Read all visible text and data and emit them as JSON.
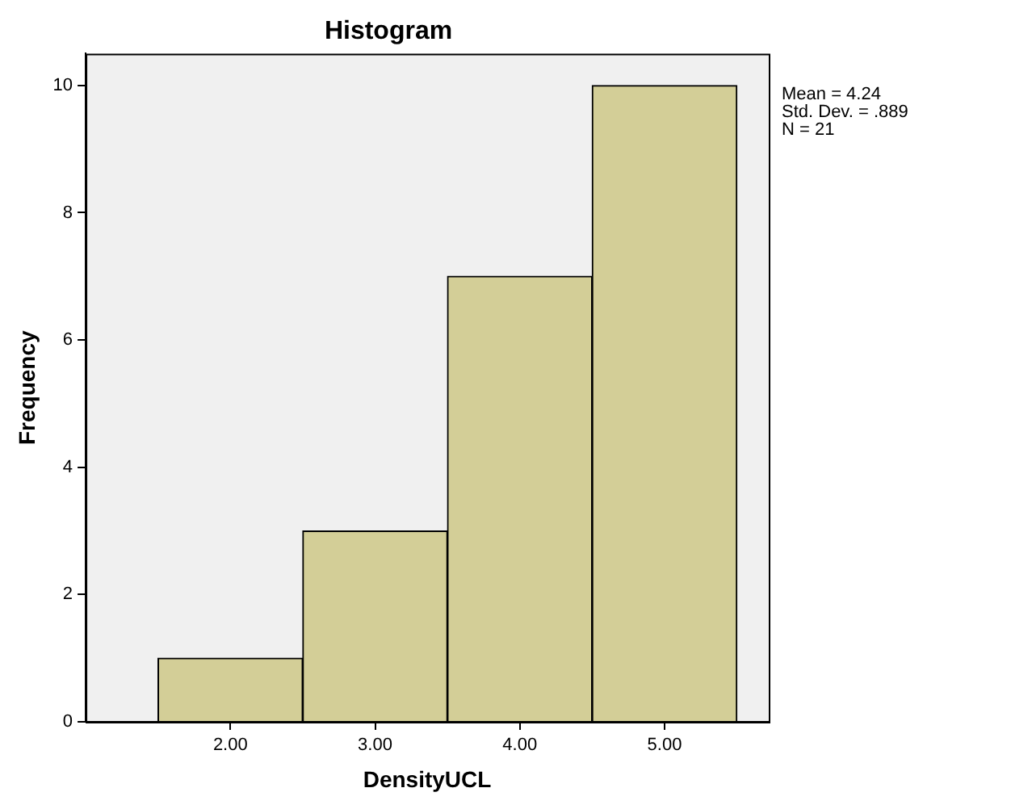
{
  "chart_data": {
    "type": "histogram",
    "title": "Histogram",
    "xlabel": "DensityUCL",
    "ylabel": "Frequency",
    "bins": [
      1.5,
      2.5,
      3.5,
      4.5,
      5.5
    ],
    "values": [
      1,
      3,
      7,
      10
    ],
    "color": "#d3ce97",
    "xlim": [
      1.0,
      5.72
    ],
    "xticks": [
      {
        "value": 2,
        "label": "2.00"
      },
      {
        "value": 3,
        "label": "3.00"
      },
      {
        "value": 4,
        "label": "4.00"
      },
      {
        "value": 5,
        "label": "5.00"
      }
    ],
    "ylim": [
      0,
      10.5
    ],
    "yticks": [
      0,
      2,
      4,
      6,
      8,
      10
    ],
    "annotations": [
      "Mean = 4.24",
      "Std. Dev. = .889",
      "N = 21"
    ]
  }
}
